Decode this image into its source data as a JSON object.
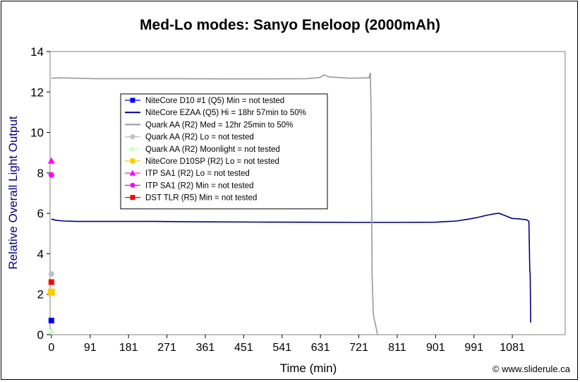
{
  "chart_data": {
    "type": "line",
    "title": "Med-Lo modes: Sanyo Eneloop (2000mAh)",
    "xlabel": "Time (min)",
    "ylabel": "Relative Overall Light Output",
    "xlim": [
      -3,
      1205
    ],
    "ylim": [
      0,
      14
    ],
    "x_ticks": [
      0,
      91,
      181,
      271,
      361,
      451,
      541,
      631,
      721,
      811,
      901,
      991,
      1081
    ],
    "y_ticks": [
      0,
      2,
      4,
      6,
      8,
      10,
      12,
      14
    ],
    "grid": false,
    "legend_position": "upper-left-inside",
    "series": [
      {
        "name": "NiteCore D10 #1 (Q5) Min = not tested",
        "color": "#0000ff",
        "marker": "square",
        "line": false,
        "points": [
          [
            0,
            0.7
          ]
        ]
      },
      {
        "name": "NiteCore EZAA (Q5) Hi = 18hr 57min to 50%",
        "color": "#000080",
        "marker": "none",
        "line": true,
        "points": [
          [
            0,
            5.72
          ],
          [
            10,
            5.66
          ],
          [
            30,
            5.62
          ],
          [
            60,
            5.6
          ],
          [
            120,
            5.6
          ],
          [
            240,
            5.6
          ],
          [
            360,
            5.58
          ],
          [
            480,
            5.57
          ],
          [
            600,
            5.56
          ],
          [
            720,
            5.55
          ],
          [
            800,
            5.55
          ],
          [
            900,
            5.56
          ],
          [
            950,
            5.62
          ],
          [
            980,
            5.72
          ],
          [
            1000,
            5.8
          ],
          [
            1020,
            5.9
          ],
          [
            1040,
            5.98
          ],
          [
            1050,
            6.0
          ],
          [
            1060,
            5.92
          ],
          [
            1080,
            5.75
          ],
          [
            1100,
            5.72
          ],
          [
            1115,
            5.68
          ],
          [
            1120,
            5.6
          ],
          [
            1122,
            3.2
          ],
          [
            1123,
            3.0
          ],
          [
            1124,
            0.6
          ]
        ]
      },
      {
        "name": "Quark AA (R2) Med = 12hr 25min to 50%",
        "color": "#999999",
        "marker": "none",
        "line": true,
        "points": [
          [
            0,
            12.68
          ],
          [
            20,
            12.7
          ],
          [
            100,
            12.66
          ],
          [
            200,
            12.66
          ],
          [
            300,
            12.66
          ],
          [
            400,
            12.65
          ],
          [
            500,
            12.65
          ],
          [
            600,
            12.66
          ],
          [
            630,
            12.72
          ],
          [
            640,
            12.85
          ],
          [
            650,
            12.75
          ],
          [
            700,
            12.68
          ],
          [
            745,
            12.7
          ],
          [
            748,
            12.95
          ],
          [
            750,
            11.0
          ],
          [
            752,
            3.0
          ],
          [
            755,
            1.0
          ],
          [
            765,
            0.0
          ]
        ]
      },
      {
        "name": "Quark AA (R2) Lo = not tested",
        "color": "#c0c0c0",
        "marker": "circle",
        "line": false,
        "points": [
          [
            0,
            3.0
          ]
        ]
      },
      {
        "name": "Quark AA (R2) Moonlight = not tested",
        "color": "#ccffcc",
        "marker": "triangle",
        "line": false,
        "points": [
          [
            0,
            0.2
          ]
        ]
      },
      {
        "name": "NiteCore D10SP (R2) Lo = not tested",
        "color": "#ffcc00",
        "marker": "square",
        "line": false,
        "points": [
          [
            0,
            2.1
          ]
        ]
      },
      {
        "name": "ITP SA1 (R2) Lo = not tested",
        "color": "#ff00ff",
        "marker": "triangle",
        "line": false,
        "points": [
          [
            0,
            8.6
          ]
        ]
      },
      {
        "name": "ITP SA1 (R2) Min = not tested",
        "color": "#ff00ff",
        "marker": "circle",
        "line": false,
        "points": [
          [
            0,
            7.9
          ]
        ]
      },
      {
        "name": "DST TLR (R5) Min = not tested",
        "color": "#ff0000",
        "marker": "square",
        "line": false,
        "points": [
          [
            0,
            2.6
          ]
        ]
      }
    ]
  },
  "credit": "© www.sliderule.ca",
  "colors": {
    "axis_title": "#000080",
    "text": "#000000",
    "frame": "#000000"
  }
}
